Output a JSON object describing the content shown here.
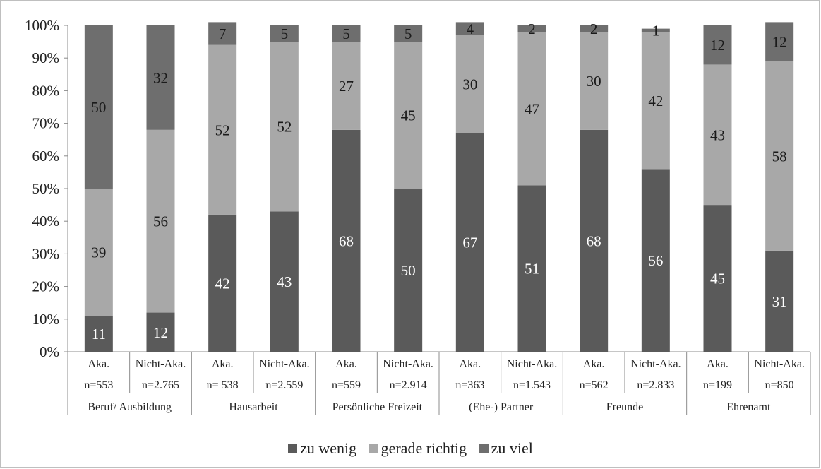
{
  "chart_data": {
    "type": "bar",
    "stacked": true,
    "percent": true,
    "title": "",
    "xlabel": "",
    "ylabel": "",
    "ylim": [
      0,
      100
    ],
    "yticks": [
      "0%",
      "10%",
      "20%",
      "30%",
      "40%",
      "50%",
      "60%",
      "70%",
      "80%",
      "90%",
      "100%"
    ],
    "groups": [
      "Beruf/ Ausbildung",
      "Hausarbeit",
      "Persönliche Freizeit",
      "(Ehe-) Partner",
      "Freunde",
      "Ehrenamt"
    ],
    "categories": [
      {
        "label": "Aka.",
        "n": "n=553"
      },
      {
        "label": "Nicht-Aka.",
        "n": "n=2.765"
      },
      {
        "label": "Aka.",
        "n": "n= 538"
      },
      {
        "label": "Nicht-Aka.",
        "n": "n=2.559"
      },
      {
        "label": "Aka.",
        "n": "n=559"
      },
      {
        "label": "Nicht-Aka.",
        "n": "n=2.914"
      },
      {
        "label": "Aka.",
        "n": "n=363"
      },
      {
        "label": "Nicht-Aka.",
        "n": "n=1.543"
      },
      {
        "label": "Aka.",
        "n": "n=562"
      },
      {
        "label": "Nicht-Aka.",
        "n": "n=2.833"
      },
      {
        "label": "Aka.",
        "n": "n=199"
      },
      {
        "label": "Nicht-Aka.",
        "n": "n=850"
      }
    ],
    "series": [
      {
        "name": "zu wenig",
        "color": "#5a5a5a",
        "label_color": "#ffffff",
        "values": [
          11,
          12,
          42,
          43,
          68,
          50,
          67,
          51,
          68,
          56,
          45,
          31
        ]
      },
      {
        "name": "gerade richtig",
        "color": "#a8a8a8",
        "label_color": "#1a1a1a",
        "values": [
          39,
          56,
          52,
          52,
          27,
          45,
          30,
          47,
          30,
          42,
          43,
          58
        ]
      },
      {
        "name": "zu viel",
        "color": "#6e6e6e",
        "label_color": "#1a1a1a",
        "values": [
          50,
          32,
          7,
          5,
          5,
          5,
          4,
          2,
          2,
          1,
          12,
          12
        ]
      }
    ],
    "legend_position": "bottom",
    "grid": false
  }
}
